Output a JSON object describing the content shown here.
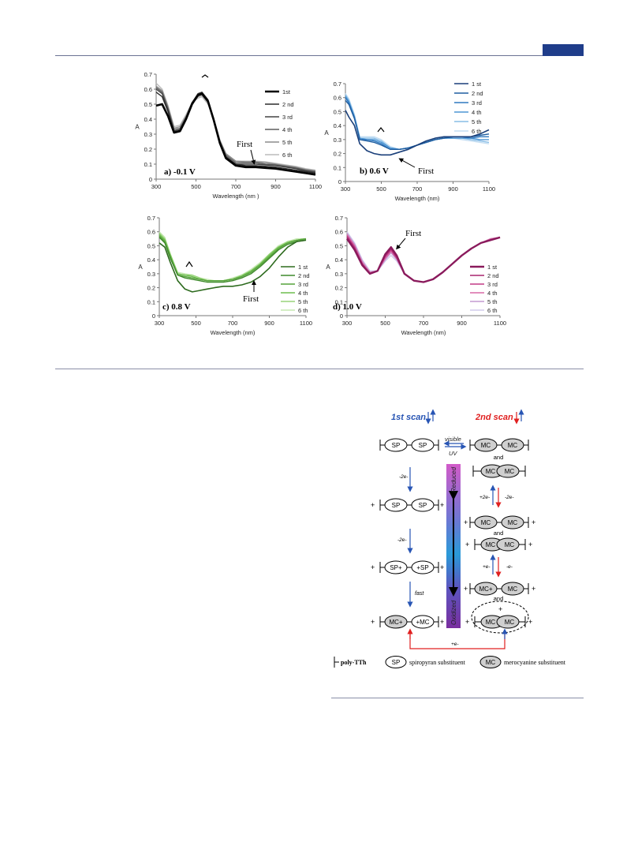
{
  "colors": {
    "header_rule": "#6b7393",
    "header_tab": "#1f3d8a",
    "first_scan": "#2855b4",
    "second_scan": "#e02020",
    "reduced_color": "#c23fc4",
    "mid_color": "#2a9ad8",
    "oxidized_color": "#7a2fa0"
  },
  "chart_data": [
    {
      "type": "line",
      "panel_label": "a) -0.1 V",
      "xlabel": "Wavelength (nm )",
      "ylabel": "A",
      "xlim": [
        300,
        1100
      ],
      "ylim": [
        0,
        0.7
      ],
      "xticks": [
        "300",
        "500",
        "700",
        "900",
        "1100"
      ],
      "yticks": [
        "0",
        "0.1",
        "0.2",
        "0.3",
        "0.4",
        "0.5",
        "0.6",
        "0.7"
      ],
      "legend": "top-right",
      "annotations": [
        "First"
      ],
      "x": [
        300,
        330,
        360,
        390,
        420,
        450,
        480,
        510,
        530,
        560,
        590,
        620,
        650,
        700,
        750,
        800,
        850,
        900,
        950,
        1000,
        1050,
        1100
      ],
      "series": [
        {
          "name": "1st",
          "color": "#000000",
          "width": 2.6,
          "values": [
            0.49,
            0.5,
            0.42,
            0.31,
            0.32,
            0.4,
            0.5,
            0.56,
            0.57,
            0.52,
            0.39,
            0.24,
            0.14,
            0.09,
            0.08,
            0.08,
            0.075,
            0.07,
            0.06,
            0.05,
            0.04,
            0.03
          ]
        },
        {
          "name": "2 nd",
          "color": "#2b2b2b",
          "width": 1.4,
          "values": [
            0.58,
            0.55,
            0.45,
            0.32,
            0.33,
            0.41,
            0.51,
            0.57,
            0.58,
            0.53,
            0.4,
            0.25,
            0.15,
            0.1,
            0.09,
            0.09,
            0.085,
            0.08,
            0.07,
            0.06,
            0.05,
            0.04
          ]
        },
        {
          "name": "3 rd",
          "color": "#444444",
          "width": 1.4,
          "values": [
            0.6,
            0.57,
            0.46,
            0.32,
            0.33,
            0.41,
            0.51,
            0.56,
            0.57,
            0.52,
            0.4,
            0.25,
            0.15,
            0.1,
            0.1,
            0.1,
            0.095,
            0.09,
            0.08,
            0.07,
            0.055,
            0.045
          ]
        },
        {
          "name": "4 th",
          "color": "#5e5e5e",
          "width": 1.4,
          "values": [
            0.61,
            0.58,
            0.47,
            0.33,
            0.34,
            0.41,
            0.51,
            0.56,
            0.57,
            0.52,
            0.4,
            0.25,
            0.16,
            0.11,
            0.11,
            0.11,
            0.1,
            0.095,
            0.085,
            0.075,
            0.06,
            0.05
          ]
        },
        {
          "name": "5 th",
          "color": "#8c8c8c",
          "width": 1.4,
          "values": [
            0.62,
            0.59,
            0.48,
            0.34,
            0.35,
            0.42,
            0.51,
            0.55,
            0.56,
            0.51,
            0.4,
            0.26,
            0.17,
            0.12,
            0.115,
            0.115,
            0.11,
            0.1,
            0.09,
            0.08,
            0.065,
            0.055
          ]
        },
        {
          "name": "6 th",
          "color": "#bcbcbc",
          "width": 1.4,
          "values": [
            0.64,
            0.6,
            0.49,
            0.35,
            0.36,
            0.43,
            0.51,
            0.54,
            0.55,
            0.5,
            0.4,
            0.26,
            0.17,
            0.12,
            0.12,
            0.12,
            0.115,
            0.105,
            0.095,
            0.085,
            0.07,
            0.06
          ]
        }
      ]
    },
    {
      "type": "line",
      "panel_label": "b) 0.6 V",
      "xlabel": "Wavelength (nm)",
      "ylabel": "A",
      "xlim": [
        300,
        1100
      ],
      "ylim": [
        0,
        0.7
      ],
      "xticks": [
        "300",
        "500",
        "700",
        "900",
        "1100"
      ],
      "yticks": [
        "0",
        "0.1",
        "0.2",
        "0.3",
        "0.4",
        "0.5",
        "0.6",
        "0.7"
      ],
      "legend": "top-right",
      "annotations": [
        "First"
      ],
      "x": [
        300,
        320,
        350,
        380,
        420,
        460,
        500,
        550,
        600,
        650,
        700,
        750,
        800,
        850,
        900,
        950,
        1000,
        1050,
        1100
      ],
      "series": [
        {
          "name": "1 st",
          "color": "#1a3f7a",
          "width": 1.6,
          "values": [
            0.51,
            0.46,
            0.4,
            0.27,
            0.22,
            0.2,
            0.19,
            0.19,
            0.21,
            0.23,
            0.26,
            0.29,
            0.31,
            0.32,
            0.32,
            0.32,
            0.32,
            0.34,
            0.37
          ]
        },
        {
          "name": "2 nd",
          "color": "#1f5ea0",
          "width": 1.4,
          "values": [
            0.58,
            0.55,
            0.45,
            0.3,
            0.29,
            0.28,
            0.26,
            0.23,
            0.23,
            0.24,
            0.26,
            0.28,
            0.3,
            0.31,
            0.32,
            0.32,
            0.32,
            0.33,
            0.34
          ]
        },
        {
          "name": "3 rd",
          "color": "#2f78bf",
          "width": 1.4,
          "values": [
            0.6,
            0.56,
            0.46,
            0.3,
            0.3,
            0.29,
            0.27,
            0.23,
            0.23,
            0.24,
            0.26,
            0.28,
            0.3,
            0.31,
            0.32,
            0.32,
            0.31,
            0.32,
            0.32
          ]
        },
        {
          "name": "4 th",
          "color": "#4d95d4",
          "width": 1.4,
          "values": [
            0.61,
            0.57,
            0.46,
            0.31,
            0.3,
            0.3,
            0.28,
            0.24,
            0.23,
            0.24,
            0.26,
            0.28,
            0.3,
            0.31,
            0.31,
            0.31,
            0.31,
            0.3,
            0.3
          ]
        },
        {
          "name": "5 th",
          "color": "#88bde6",
          "width": 1.4,
          "values": [
            0.62,
            0.58,
            0.47,
            0.31,
            0.31,
            0.31,
            0.29,
            0.24,
            0.23,
            0.24,
            0.26,
            0.28,
            0.3,
            0.31,
            0.31,
            0.31,
            0.3,
            0.29,
            0.28
          ]
        },
        {
          "name": "6 th",
          "color": "#c3ddf2",
          "width": 1.4,
          "values": [
            0.63,
            0.59,
            0.48,
            0.32,
            0.32,
            0.32,
            0.3,
            0.25,
            0.23,
            0.24,
            0.26,
            0.28,
            0.3,
            0.31,
            0.31,
            0.3,
            0.29,
            0.28,
            0.27
          ]
        }
      ]
    },
    {
      "type": "line",
      "panel_label": "c) 0.8 V",
      "xlabel": "Wavelength (nm)",
      "ylabel": "A",
      "xlim": [
        300,
        1100
      ],
      "ylim": [
        0,
        0.7
      ],
      "xticks": [
        "300",
        "500",
        "700",
        "900",
        "1100"
      ],
      "yticks": [
        "0",
        "0.1",
        "0.2",
        "0.3",
        "0.4",
        "0.5",
        "0.6",
        "0.7"
      ],
      "legend": "right",
      "annotations": [
        "First"
      ],
      "x": [
        300,
        330,
        360,
        400,
        440,
        480,
        520,
        560,
        600,
        650,
        700,
        750,
        800,
        850,
        900,
        950,
        1000,
        1050,
        1100
      ],
      "series": [
        {
          "name": "1 st",
          "color": "#2e6b1f",
          "width": 1.6,
          "values": [
            0.52,
            0.49,
            0.38,
            0.25,
            0.19,
            0.17,
            0.18,
            0.19,
            0.2,
            0.21,
            0.21,
            0.22,
            0.24,
            0.28,
            0.34,
            0.42,
            0.49,
            0.53,
            0.54
          ]
        },
        {
          "name": "2 nd",
          "color": "#3f8a2c",
          "width": 1.4,
          "values": [
            0.56,
            0.52,
            0.41,
            0.29,
            0.27,
            0.26,
            0.25,
            0.24,
            0.24,
            0.24,
            0.25,
            0.27,
            0.3,
            0.35,
            0.41,
            0.47,
            0.51,
            0.53,
            0.54
          ]
        },
        {
          "name": "3 rd",
          "color": "#55a33a",
          "width": 1.4,
          "values": [
            0.57,
            0.53,
            0.42,
            0.29,
            0.28,
            0.27,
            0.26,
            0.25,
            0.25,
            0.25,
            0.26,
            0.28,
            0.31,
            0.36,
            0.42,
            0.48,
            0.52,
            0.54,
            0.55
          ]
        },
        {
          "name": "4 th",
          "color": "#6ebd4f",
          "width": 1.4,
          "values": [
            0.58,
            0.54,
            0.43,
            0.3,
            0.29,
            0.28,
            0.26,
            0.25,
            0.25,
            0.25,
            0.26,
            0.28,
            0.32,
            0.37,
            0.43,
            0.49,
            0.52,
            0.54,
            0.55
          ]
        },
        {
          "name": "5 th",
          "color": "#98d47a",
          "width": 1.4,
          "values": [
            0.59,
            0.55,
            0.44,
            0.3,
            0.29,
            0.29,
            0.27,
            0.25,
            0.25,
            0.25,
            0.26,
            0.29,
            0.32,
            0.37,
            0.44,
            0.49,
            0.53,
            0.54,
            0.55
          ]
        },
        {
          "name": "6 th",
          "color": "#c6e8b2",
          "width": 1.4,
          "values": [
            0.6,
            0.56,
            0.44,
            0.31,
            0.3,
            0.29,
            0.27,
            0.26,
            0.25,
            0.25,
            0.27,
            0.29,
            0.33,
            0.38,
            0.44,
            0.5,
            0.53,
            0.55,
            0.55
          ]
        }
      ]
    },
    {
      "type": "line",
      "panel_label": "d) 1.0 V",
      "xlabel": "Wavelength (nm)",
      "ylabel": "A",
      "xlim": [
        300,
        1100
      ],
      "ylim": [
        0,
        0.7
      ],
      "xticks": [
        "300",
        "500",
        "700",
        "900",
        "1100"
      ],
      "yticks": [
        "0",
        "0.1",
        "0.2",
        "0.3",
        "0.4",
        "0.5",
        "0.6",
        "0.7"
      ],
      "legend": "bottom-right",
      "annotations": [
        "First"
      ],
      "x": [
        300,
        340,
        380,
        420,
        460,
        500,
        530,
        560,
        600,
        650,
        700,
        750,
        800,
        850,
        900,
        950,
        1000,
        1050,
        1100
      ],
      "series": [
        {
          "name": "1 st",
          "color": "#8a1a5c",
          "width": 2.4,
          "values": [
            0.55,
            0.47,
            0.36,
            0.3,
            0.32,
            0.44,
            0.49,
            0.43,
            0.3,
            0.25,
            0.24,
            0.26,
            0.31,
            0.37,
            0.43,
            0.48,
            0.52,
            0.54,
            0.56
          ]
        },
        {
          "name": "2 nd",
          "color": "#a8256f",
          "width": 1.4,
          "values": [
            0.56,
            0.48,
            0.37,
            0.3,
            0.32,
            0.43,
            0.48,
            0.42,
            0.3,
            0.25,
            0.24,
            0.26,
            0.31,
            0.37,
            0.43,
            0.48,
            0.52,
            0.54,
            0.56
          ]
        },
        {
          "name": "3 rd",
          "color": "#c23a86",
          "width": 1.4,
          "values": [
            0.57,
            0.49,
            0.37,
            0.3,
            0.32,
            0.42,
            0.47,
            0.41,
            0.3,
            0.25,
            0.24,
            0.26,
            0.31,
            0.37,
            0.43,
            0.48,
            0.52,
            0.54,
            0.56
          ]
        },
        {
          "name": "4 th",
          "color": "#d869a6",
          "width": 1.4,
          "values": [
            0.58,
            0.5,
            0.38,
            0.31,
            0.32,
            0.41,
            0.46,
            0.41,
            0.3,
            0.25,
            0.24,
            0.26,
            0.31,
            0.37,
            0.43,
            0.48,
            0.52,
            0.55,
            0.56
          ]
        },
        {
          "name": "5 th",
          "color": "#c49ad0",
          "width": 1.4,
          "values": [
            0.59,
            0.51,
            0.39,
            0.31,
            0.32,
            0.4,
            0.45,
            0.4,
            0.3,
            0.25,
            0.24,
            0.26,
            0.31,
            0.37,
            0.43,
            0.48,
            0.52,
            0.55,
            0.56
          ]
        },
        {
          "name": "6 th",
          "color": "#d2cbeb",
          "width": 1.4,
          "values": [
            0.6,
            0.52,
            0.4,
            0.32,
            0.32,
            0.39,
            0.43,
            0.39,
            0.3,
            0.25,
            0.24,
            0.26,
            0.31,
            0.37,
            0.43,
            0.48,
            0.52,
            0.55,
            0.56
          ]
        }
      ]
    }
  ],
  "scheme": {
    "first_scan": "1st scan",
    "second_scan": "2nd scan",
    "visible": "visible",
    "uv": "UV",
    "reduced": "Reduced",
    "oxidized": "Oxidized",
    "and": "and",
    "e_minus_2": "-2e-",
    "e_plus_2": "+2e-",
    "e_minus": "-e-",
    "e_plus": "+e-",
    "fast": "fast",
    "sp": "SP",
    "mc": "MC",
    "legend_polymer": "poly-TTh",
    "legend_sp": "spiropyran substituent",
    "legend_mc": "merocyanine substituent"
  }
}
